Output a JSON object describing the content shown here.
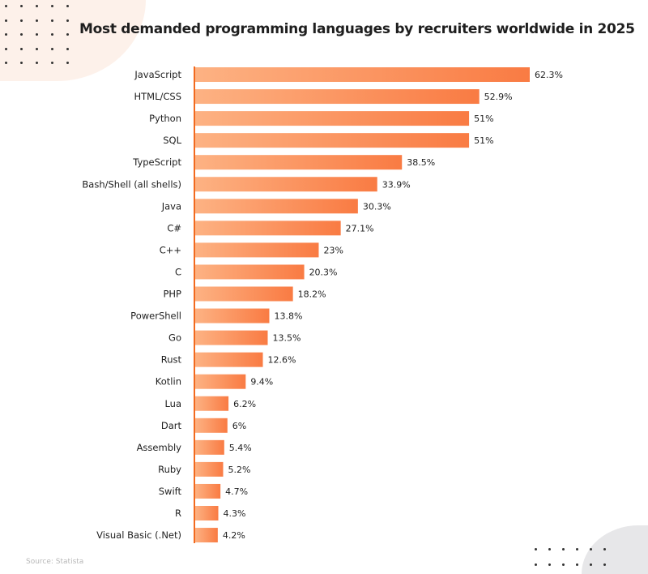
{
  "chart_data": {
    "type": "bar",
    "orientation": "horizontal",
    "title": "Most demanded programming languages by recruiters worldwide in 2025",
    "categories": [
      "JavaScript",
      "HTML/CSS",
      "Python",
      "SQL",
      "TypeScript",
      "Bash/Shell (all shells)",
      "Java",
      "C#",
      "C++",
      "C",
      "PHP",
      "PowerShell",
      "Go",
      "Rust",
      "Kotlin",
      "Lua",
      "Dart",
      "Assembly",
      "Ruby",
      "Swift",
      "R",
      "Visual Basic (.Net)"
    ],
    "values": [
      62.3,
      52.9,
      51,
      51,
      38.5,
      33.9,
      30.3,
      27.1,
      23,
      20.3,
      18.2,
      13.8,
      13.5,
      12.6,
      9.4,
      6.2,
      6,
      5.4,
      5.2,
      4.7,
      4.3,
      4.2
    ],
    "value_labels": [
      "62.3%",
      "52.9%",
      "51%",
      "51%",
      "38.5%",
      "33.9%",
      "30.3%",
      "27.1%",
      "23%",
      "20.3%",
      "18.2%",
      "13.8%",
      "13.5%",
      "12.6%",
      "9.4%",
      "6.2%",
      "6%",
      "5.4%",
      "5.2%",
      "4.7%",
      "4.3%",
      "4.2%"
    ],
    "xlim": [
      0,
      62.3
    ],
    "grid": false,
    "legend": "none",
    "colors": {
      "bar_start": "#fdb283",
      "bar_end": "#f97b43",
      "axis": "#f26a1f"
    }
  },
  "source": "Source: Statista"
}
